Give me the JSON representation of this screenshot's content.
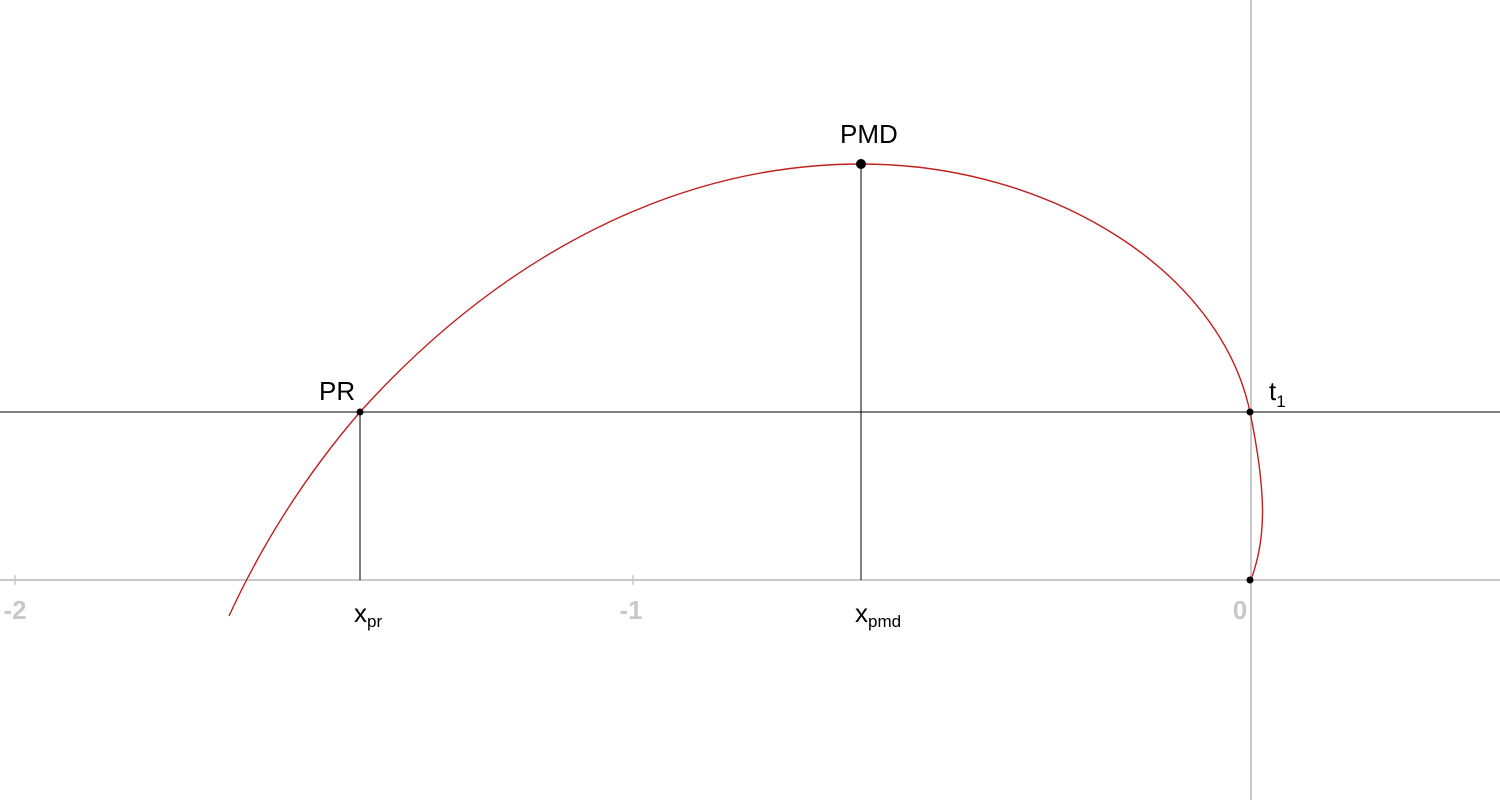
{
  "x_axis": {
    "ticks": [
      {
        "value": -2,
        "label": "-2"
      },
      {
        "value": -1,
        "label": "-1"
      },
      {
        "value": 0,
        "label": "0"
      }
    ]
  },
  "points": {
    "pr": {
      "label": "PR"
    },
    "pmd": {
      "label": "PMD"
    },
    "t1": {
      "label_main": "t",
      "label_sub": "1"
    }
  },
  "markers": {
    "x_pr": {
      "main": "x",
      "sub": "pr"
    },
    "x_pmd": {
      "main": "x",
      "sub": "pmd"
    }
  },
  "colors": {
    "curve": "#c0201e",
    "axis": "#c8c8c8",
    "lines": "#000000",
    "tick_label": "#c8c8c8"
  }
}
